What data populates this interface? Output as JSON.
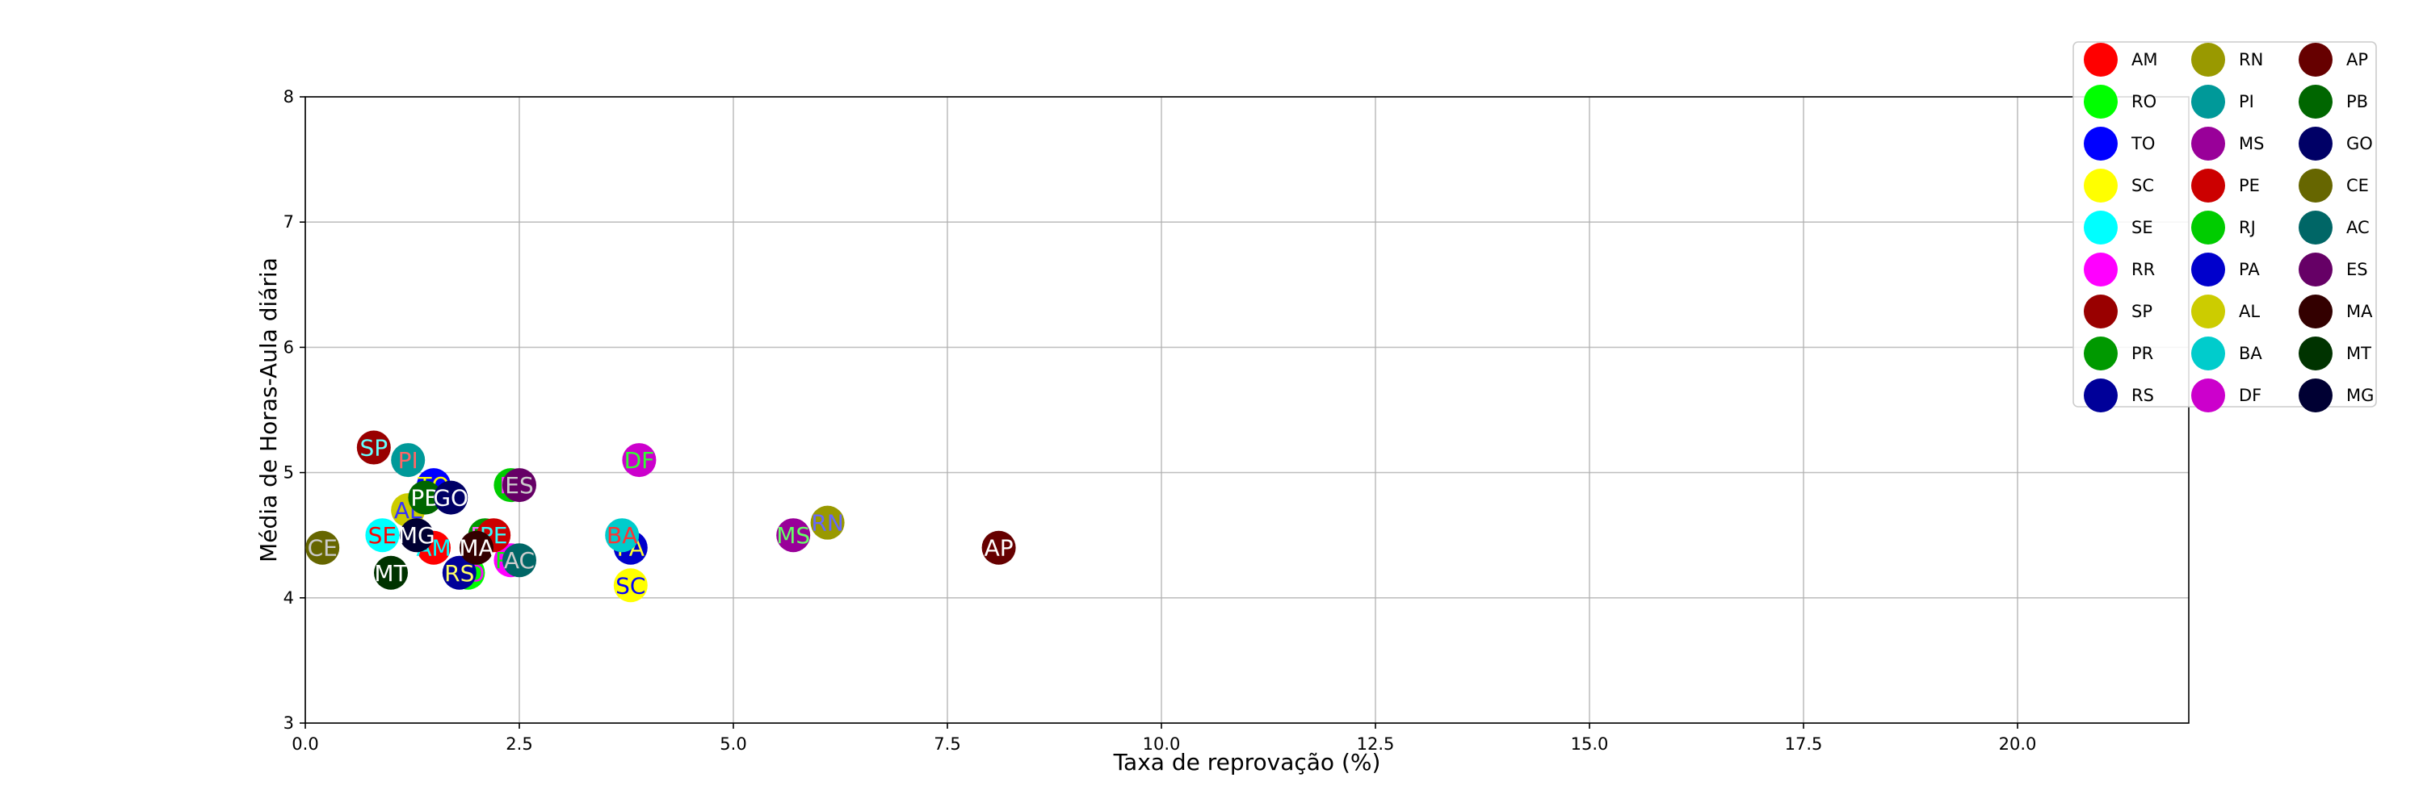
{
  "chart_data": {
    "type": "scatter",
    "title": "",
    "xlabel": "Taxa de reprovação (%)",
    "ylabel": "Média de Horas-Aula diária",
    "xlim": [
      0,
      22
    ],
    "ylim": [
      3,
      8
    ],
    "x_ticks": [
      0.0,
      2.5,
      5.0,
      7.5,
      10.0,
      12.5,
      15.0,
      17.5,
      20.0
    ],
    "y_ticks": [
      3,
      4,
      5,
      6,
      7,
      8
    ],
    "x_tick_labels": [
      "0.0",
      "2.5",
      "5.0",
      "7.5",
      "10.0",
      "12.5",
      "15.0",
      "17.5",
      "20.0"
    ],
    "y_tick_labels": [
      "3",
      "4",
      "5",
      "6",
      "7",
      "8"
    ],
    "grid": true,
    "legend_position": "top-right",
    "legend_columns": 3,
    "series": [
      {
        "name": "AM",
        "color": "#ff0000",
        "label_color": "#00ffff",
        "x": 1.5,
        "y": 4.4
      },
      {
        "name": "RO",
        "color": "#00ff00",
        "label_color": "#ff00ff",
        "x": 1.9,
        "y": 4.2
      },
      {
        "name": "TO",
        "color": "#0000ff",
        "label_color": "#ffff00",
        "x": 1.5,
        "y": 4.9
      },
      {
        "name": "SC",
        "color": "#ffff00",
        "label_color": "#0000ff",
        "x": 3.8,
        "y": 4.1
      },
      {
        "name": "SE",
        "color": "#00ffff",
        "label_color": "#ff0000",
        "x": 0.9,
        "y": 4.5
      },
      {
        "name": "RR",
        "color": "#ff00ff",
        "label_color": "#00ff00",
        "x": 2.4,
        "y": 4.3
      },
      {
        "name": "SP",
        "color": "#990000",
        "label_color": "#66ffff",
        "x": 0.8,
        "y": 5.2
      },
      {
        "name": "PR",
        "color": "#009900",
        "label_color": "#ff66ff",
        "x": 2.1,
        "y": 4.5
      },
      {
        "name": "RS",
        "color": "#000099",
        "label_color": "#ffff66",
        "x": 1.8,
        "y": 4.2
      },
      {
        "name": "RN",
        "color": "#999900",
        "label_color": "#6666ff",
        "x": 6.1,
        "y": 4.6
      },
      {
        "name": "PI",
        "color": "#009999",
        "label_color": "#ff6666",
        "x": 1.2,
        "y": 5.1
      },
      {
        "name": "MS",
        "color": "#990099",
        "label_color": "#66ff66",
        "x": 5.7,
        "y": 4.5
      },
      {
        "name": "PE",
        "color": "#cc0000",
        "label_color": "#33ffff",
        "x": 2.2,
        "y": 4.5
      },
      {
        "name": "RJ",
        "color": "#00cc00",
        "label_color": "#ff33ff",
        "x": 2.4,
        "y": 4.9
      },
      {
        "name": "PA",
        "color": "#0000cc",
        "label_color": "#ffff33",
        "x": 3.8,
        "y": 4.4
      },
      {
        "name": "AL",
        "color": "#cccc00",
        "label_color": "#3333ff",
        "x": 1.2,
        "y": 4.7
      },
      {
        "name": "BA",
        "color": "#00cccc",
        "label_color": "#ff3333",
        "x": 3.7,
        "y": 4.5
      },
      {
        "name": "DF",
        "color": "#cc00cc",
        "label_color": "#33ff33",
        "x": 3.9,
        "y": 5.1
      },
      {
        "name": "AP",
        "color": "#660000",
        "label_color": "#ffffff",
        "x": 8.1,
        "y": 4.4
      },
      {
        "name": "PB",
        "color": "#006600",
        "label_color": "#ffffff",
        "x": 1.4,
        "y": 4.8
      },
      {
        "name": "GO",
        "color": "#000066",
        "label_color": "#ffffff",
        "x": 1.7,
        "y": 4.8
      },
      {
        "name": "CE",
        "color": "#666600",
        "label_color": "#cccccc",
        "x": 0.2,
        "y": 4.4
      },
      {
        "name": "AC",
        "color": "#006666",
        "label_color": "#cccccc",
        "x": 2.5,
        "y": 4.3
      },
      {
        "name": "ES",
        "color": "#660066",
        "label_color": "#cccccc",
        "x": 2.5,
        "y": 4.9
      },
      {
        "name": "MA",
        "color": "#330000",
        "label_color": "#ffffff",
        "x": 2.0,
        "y": 4.4
      },
      {
        "name": "MT",
        "color": "#003300",
        "label_color": "#ffffff",
        "x": 1.0,
        "y": 4.2
      },
      {
        "name": "MG",
        "color": "#000033",
        "label_color": "#ffffff",
        "x": 1.3,
        "y": 4.5
      }
    ]
  }
}
